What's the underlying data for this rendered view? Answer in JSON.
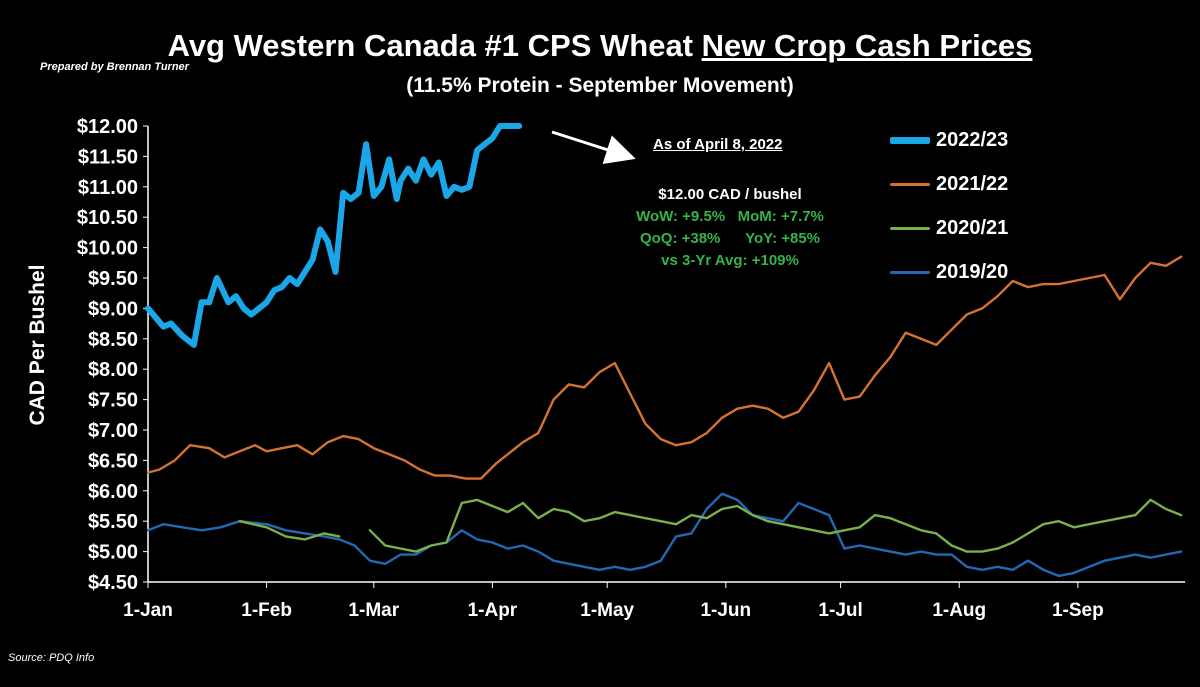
{
  "prepared_by": "Prepared by Brennan Turner",
  "source": "Source: PDQ Info",
  "annotation": {
    "as_of": "As of April 8, 2022",
    "price": "$12.00 CAD / bushel",
    "line1": "WoW: +9.5%   MoM: +7.7%",
    "line2": "QoQ: +38%      YoY: +85%",
    "line3": "vs 3-Yr Avg: +109%"
  },
  "chart_data": {
    "type": "line",
    "title_prefix": "Avg Western Canada #1 CPS Wheat ",
    "title_underlined": "New Crop Cash Prices",
    "subtitle": "(11.5% Protein - September Movement)",
    "ylabel": "CAD Per Bushel",
    "xlabel": "",
    "ylim": [
      4.5,
      12.0
    ],
    "yticks": [
      "$12.00",
      "$11.50",
      "$11.00",
      "$10.50",
      "$10.00",
      "$9.50",
      "$9.00",
      "$8.50",
      "$8.00",
      "$7.50",
      "$7.00",
      "$6.50",
      "$6.00",
      "$5.50",
      "$5.00",
      "$4.50"
    ],
    "xticks": [
      "1-Jan",
      "1-Feb",
      "1-Mar",
      "1-Apr",
      "1-May",
      "1-Jun",
      "1-Jul",
      "1-Aug",
      "1-Sep"
    ],
    "legend_position": "right",
    "grid": false,
    "series": [
      {
        "name": "2022/23",
        "color": "#1ba6e8",
        "x": [
          "Jan 1",
          "Jan 3",
          "Jan 5",
          "Jan 7",
          "Jan 10",
          "Jan 13",
          "Jan 15",
          "Jan 17",
          "Jan 19",
          "Jan 22",
          "Jan 24",
          "Jan 26",
          "Jan 28",
          "Jan 30",
          "Feb 1",
          "Feb 3",
          "Feb 5",
          "Feb 7",
          "Feb 9",
          "Feb 11",
          "Feb 13",
          "Feb 15",
          "Feb 17",
          "Feb 19",
          "Feb 21",
          "Feb 23",
          "Feb 25",
          "Feb 27",
          "Mar 1",
          "Mar 3",
          "Mar 5",
          "Mar 7",
          "Mar 8",
          "Mar 10",
          "Mar 12",
          "Mar 14",
          "Mar 16",
          "Mar 18",
          "Mar 20",
          "Mar 22",
          "Mar 24",
          "Mar 26",
          "Mar 28",
          "Mar 30",
          "Apr 1",
          "Apr 3",
          "Apr 5",
          "Apr 8"
        ],
        "values": [
          9.0,
          8.85,
          8.7,
          8.75,
          8.55,
          8.4,
          9.1,
          9.1,
          9.5,
          9.1,
          9.2,
          9.0,
          8.9,
          9.0,
          9.1,
          9.3,
          9.35,
          9.5,
          9.4,
          9.6,
          9.8,
          10.3,
          10.1,
          9.6,
          10.9,
          10.8,
          10.9,
          11.7,
          10.85,
          11.0,
          11.45,
          10.8,
          11.1,
          11.3,
          11.1,
          11.45,
          11.2,
          11.4,
          10.85,
          11.0,
          10.95,
          11.0,
          11.6,
          11.7,
          11.8,
          12.0,
          12.0,
          12.0
        ]
      },
      {
        "name": "2021/22",
        "color": "#d47233",
        "x": [
          "Jan 1",
          "Jan 4",
          "Jan 8",
          "Jan 12",
          "Jan 17",
          "Jan 21",
          "Jan 25",
          "Jan 29",
          "Feb 1",
          "Feb 5",
          "Feb 9",
          "Feb 13",
          "Feb 17",
          "Feb 21",
          "Feb 25",
          "Mar 1",
          "Mar 5",
          "Mar 9",
          "Mar 13",
          "Mar 17",
          "Mar 21",
          "Mar 25",
          "Mar 29",
          "Apr 2",
          "Apr 5",
          "Apr 9",
          "Apr 13",
          "Apr 17",
          "Apr 21",
          "Apr 25",
          "Apr 29",
          "May 3",
          "May 7",
          "May 11",
          "May 15",
          "May 19",
          "May 23",
          "May 27",
          "May 31",
          "Jun 4",
          "Jun 8",
          "Jun 12",
          "Jun 16",
          "Jun 20",
          "Jun 24",
          "Jun 28",
          "Jul 2",
          "Jul 6",
          "Jul 10",
          "Jul 14",
          "Jul 18",
          "Jul 22",
          "Jul 26",
          "Jul 30",
          "Aug 3",
          "Aug 7",
          "Aug 11",
          "Aug 15",
          "Aug 19",
          "Aug 23",
          "Aug 27",
          "Aug 31",
          "Sep 4",
          "Sep 8",
          "Sep 12",
          "Sep 16",
          "Sep 20",
          "Sep 24",
          "Sep 28"
        ],
        "values": [
          6.3,
          6.35,
          6.5,
          6.75,
          6.7,
          6.55,
          6.65,
          6.75,
          6.65,
          6.7,
          6.75,
          6.6,
          6.8,
          6.9,
          6.85,
          6.7,
          6.6,
          6.5,
          6.35,
          6.25,
          6.25,
          6.2,
          6.2,
          6.45,
          6.6,
          6.8,
          6.95,
          7.5,
          7.75,
          7.7,
          7.95,
          8.1,
          7.6,
          7.1,
          6.85,
          6.75,
          6.8,
          6.95,
          7.2,
          7.35,
          7.4,
          7.35,
          7.2,
          7.3,
          7.65,
          8.1,
          7.5,
          7.55,
          7.9,
          8.2,
          8.6,
          8.5,
          8.4,
          8.65,
          8.9,
          9.0,
          9.2,
          9.45,
          9.35,
          9.4,
          9.4,
          9.45,
          9.5,
          9.55,
          9.15,
          9.5,
          9.75,
          9.7,
          9.85
        ]
      },
      {
        "name": "2020/21",
        "color": "#7ab04a",
        "x": [
          "Jan 1",
          "Jan 5",
          "Jan 10",
          "Jan 15",
          "Jan 20",
          "Jan 25",
          "Feb 1",
          "Feb 6",
          "Feb 11",
          "Feb 16",
          "Feb 20",
          "Feb 24",
          "Feb 28",
          "Mar 4",
          "Mar 8",
          "Mar 12",
          "Mar 16",
          "Mar 20",
          "Mar 24",
          "Mar 28",
          "Apr 1",
          "Apr 5",
          "Apr 9",
          "Apr 13",
          "Apr 17",
          "Apr 21",
          "Apr 25",
          "Apr 29",
          "May 3",
          "May 7",
          "May 11",
          "May 15",
          "May 19",
          "May 23",
          "May 27",
          "May 31",
          "Jun 4",
          "Jun 8",
          "Jun 12",
          "Jun 16",
          "Jun 20",
          "Jun 24",
          "Jun 28",
          "Jul 2",
          "Jul 6",
          "Jul 10",
          "Jul 14",
          "Jul 18",
          "Jul 22",
          "Jul 26",
          "Jul 30",
          "Aug 3",
          "Aug 7",
          "Aug 11",
          "Aug 15",
          "Aug 19",
          "Aug 23",
          "Aug 27",
          "Aug 31",
          "Sep 4",
          "Sep 8",
          "Sep 12",
          "Sep 16",
          "Sep 20",
          "Sep 24",
          "Sep 28"
        ],
        "values": [
          null,
          null,
          null,
          null,
          null,
          5.5,
          5.4,
          5.25,
          5.2,
          5.3,
          5.25,
          null,
          5.35,
          5.1,
          5.05,
          5.0,
          5.1,
          5.15,
          5.8,
          5.85,
          5.75,
          5.65,
          5.8,
          5.55,
          5.7,
          5.65,
          5.5,
          5.55,
          5.65,
          5.6,
          5.55,
          5.5,
          5.45,
          5.6,
          5.55,
          5.7,
          5.75,
          5.6,
          5.5,
          5.45,
          5.4,
          5.35,
          5.3,
          5.35,
          5.4,
          5.6,
          5.55,
          5.45,
          5.35,
          5.3,
          5.1,
          5.0,
          5.0,
          5.05,
          5.15,
          5.3,
          5.45,
          5.5,
          5.4,
          5.45,
          5.5,
          5.55,
          5.6,
          5.85,
          5.7,
          5.6
        ]
      },
      {
        "name": "2019/20",
        "color": "#2268b4",
        "x": [
          "Jan 1",
          "Jan 5",
          "Jan 10",
          "Jan 15",
          "Jan 20",
          "Jan 25",
          "Feb 1",
          "Feb 6",
          "Feb 11",
          "Feb 16",
          "Feb 20",
          "Feb 24",
          "Feb 28",
          "Mar 4",
          "Mar 8",
          "Mar 12",
          "Mar 16",
          "Mar 20",
          "Mar 24",
          "Mar 28",
          "Apr 1",
          "Apr 5",
          "Apr 9",
          "Apr 13",
          "Apr 17",
          "Apr 21",
          "Apr 25",
          "Apr 29",
          "May 3",
          "May 7",
          "May 11",
          "May 15",
          "May 19",
          "May 23",
          "May 27",
          "May 31",
          "Jun 4",
          "Jun 8",
          "Jun 12",
          "Jun 16",
          "Jun 20",
          "Jun 24",
          "Jun 28",
          "Jul 2",
          "Jul 6",
          "Jul 10",
          "Jul 14",
          "Jul 18",
          "Jul 22",
          "Jul 26",
          "Jul 30",
          "Aug 3",
          "Aug 7",
          "Aug 11",
          "Aug 15",
          "Aug 19",
          "Aug 23",
          "Aug 27",
          "Aug 31",
          "Sep 4",
          "Sep 8",
          "Sep 12",
          "Sep 16",
          "Sep 20",
          "Sep 24",
          "Sep 28"
        ],
        "values": [
          5.35,
          5.45,
          5.4,
          5.35,
          5.4,
          5.5,
          5.45,
          5.35,
          5.3,
          5.25,
          5.2,
          5.1,
          4.85,
          4.8,
          4.95,
          4.95,
          5.1,
          5.15,
          5.35,
          5.2,
          5.15,
          5.05,
          5.1,
          5.0,
          4.85,
          4.8,
          4.75,
          4.7,
          4.75,
          4.7,
          4.75,
          4.85,
          5.25,
          5.3,
          5.7,
          5.95,
          5.85,
          5.6,
          5.55,
          5.5,
          5.8,
          5.7,
          5.6,
          5.05,
          5.1,
          5.05,
          5.0,
          4.95,
          5.0,
          4.95,
          4.95,
          4.75,
          4.7,
          4.75,
          4.7,
          4.85,
          4.7,
          4.6,
          4.65,
          4.75,
          4.85,
          4.9,
          4.95,
          4.9,
          4.95,
          5.0
        ]
      }
    ]
  }
}
